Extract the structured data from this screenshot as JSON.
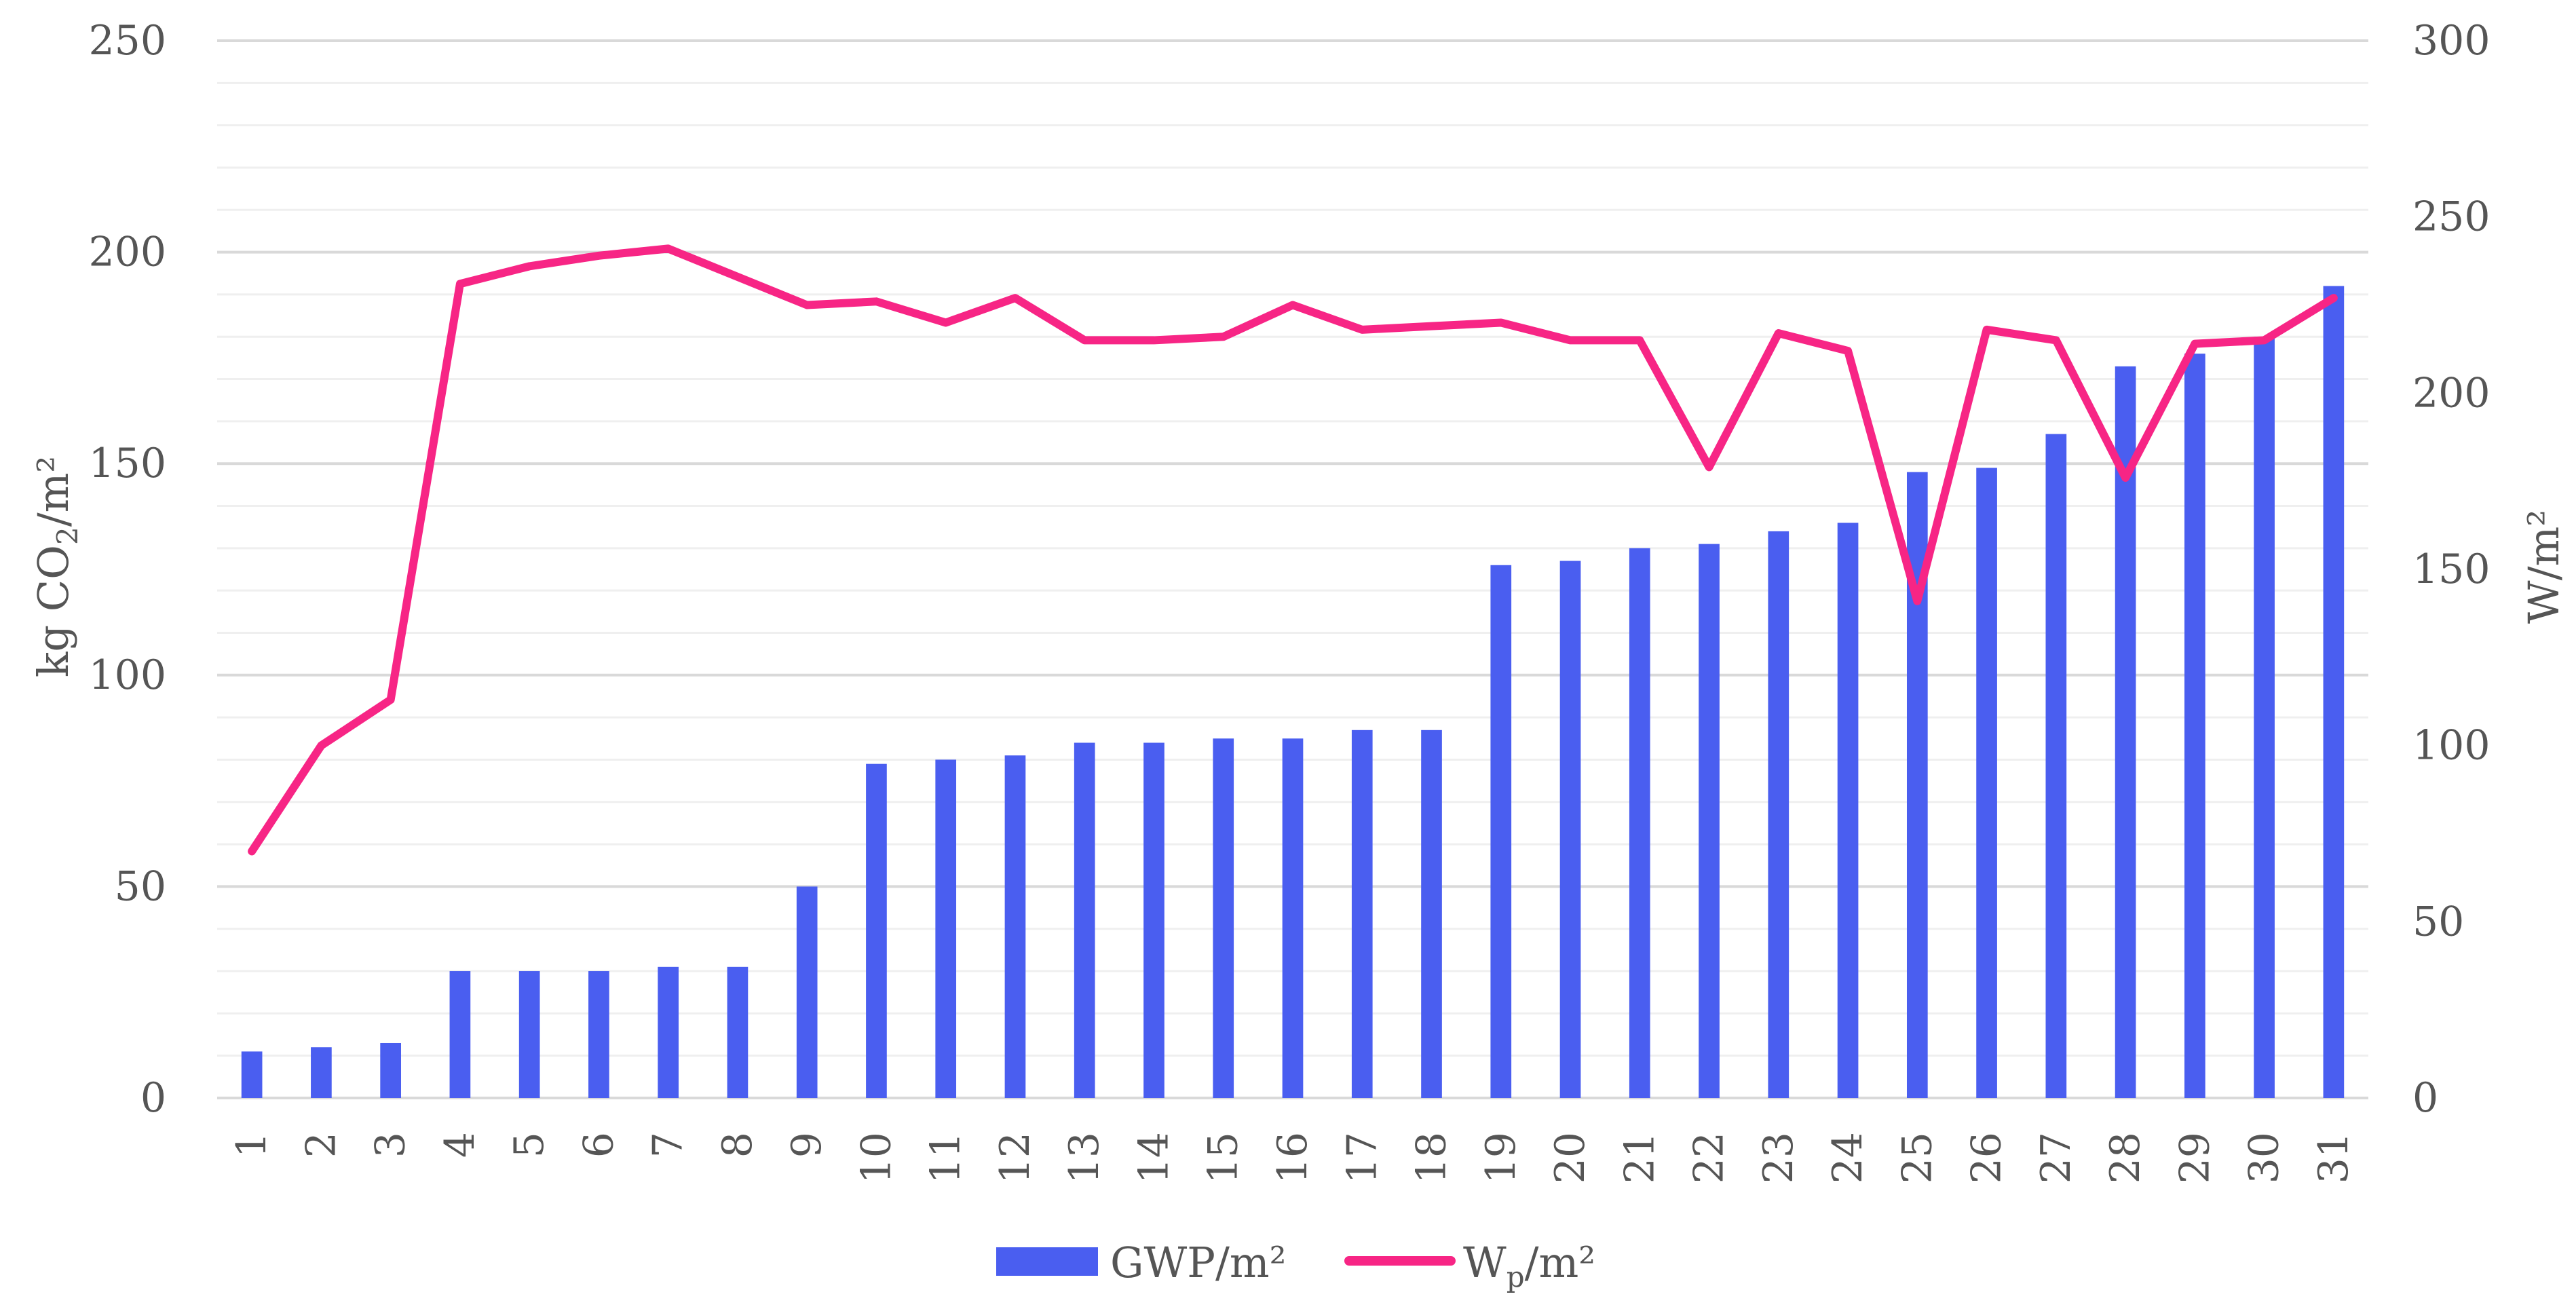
{
  "chart_data": {
    "type": "bar",
    "categories": [
      "1",
      "2",
      "3",
      "4",
      "5",
      "6",
      "7",
      "8",
      "9",
      "10",
      "11",
      "12",
      "13",
      "14",
      "15",
      "16",
      "17",
      "18",
      "19",
      "20",
      "21",
      "22",
      "23",
      "24",
      "25",
      "26",
      "27",
      "28",
      "29",
      "30",
      "31"
    ],
    "series": [
      {
        "name": "GWP/m²",
        "type": "bar",
        "axis": "left",
        "color": "#4a5ef0",
        "values": [
          11,
          12,
          13,
          30,
          30,
          30,
          31,
          31,
          50,
          79,
          80,
          81,
          84,
          84,
          85,
          85,
          87,
          87,
          126,
          127,
          130,
          131,
          134,
          136,
          148,
          149,
          157,
          173,
          176,
          180,
          192
        ]
      },
      {
        "name": "Wp/m²",
        "type": "line",
        "axis": "right",
        "color": "#f72585",
        "values": [
          70,
          100,
          113,
          231,
          236,
          239,
          241,
          233,
          225,
          226,
          220,
          227,
          215,
          215,
          216,
          225,
          218,
          219,
          220,
          215,
          215,
          179,
          217,
          212,
          141,
          218,
          215,
          176,
          214,
          215,
          227
        ]
      }
    ],
    "legend": [
      {
        "label": "GWP/m²",
        "color": "#4a5ef0",
        "marker": "bar"
      },
      {
        "label_main": "W",
        "label_sub": "p",
        "label_tail": "/m²",
        "color": "#f72585",
        "marker": "line"
      }
    ],
    "y_left": {
      "title_main": "kg CO",
      "title_sub": "2",
      "title_tail": "/m²",
      "ylim": [
        0,
        250
      ],
      "ticks": [
        "0",
        "50",
        "100",
        "150",
        "200",
        "250"
      ]
    },
    "y_right": {
      "title": "W/m²",
      "ylim": [
        0,
        300
      ],
      "ticks": [
        "0",
        "50",
        "100",
        "150",
        "200",
        "250",
        "300"
      ]
    },
    "grid": true,
    "legend_position": "bottom-center",
    "colors": {
      "grid_major": "#d9d9d9",
      "grid_minor": "#efefef",
      "text": "#555555"
    }
  }
}
